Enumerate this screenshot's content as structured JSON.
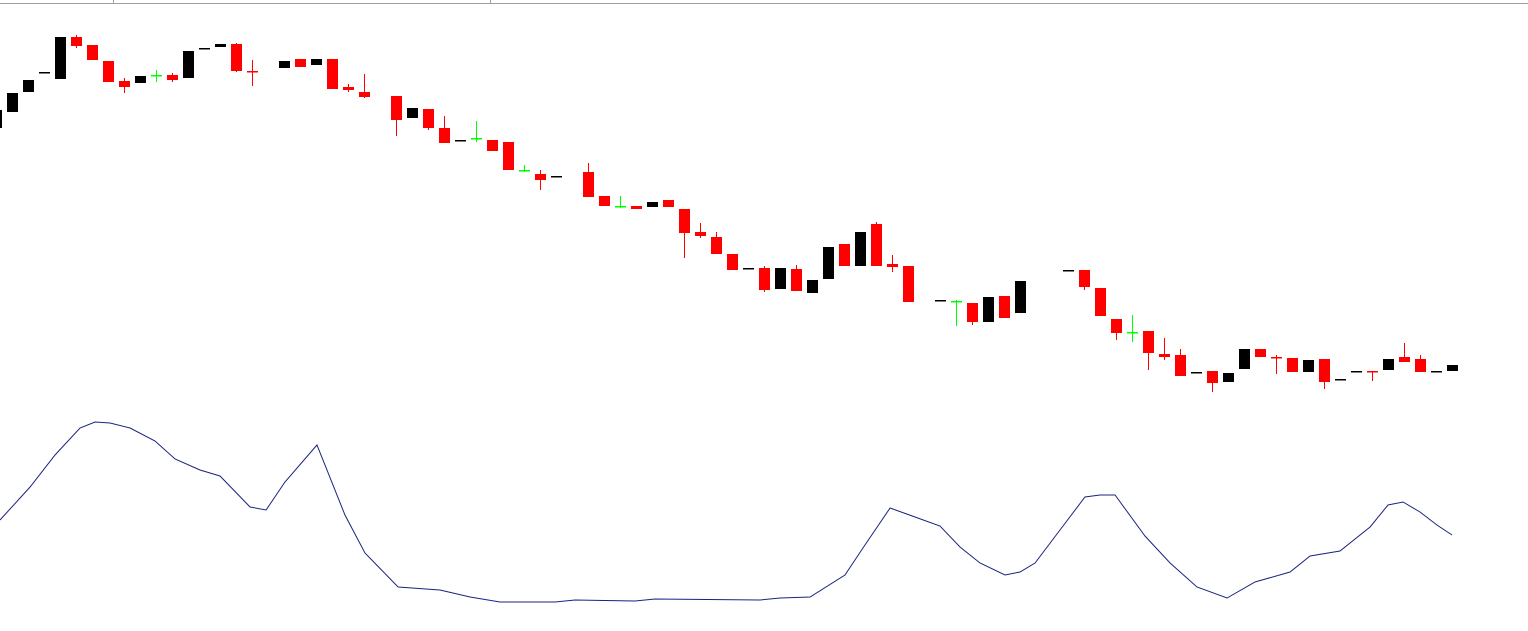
{
  "chart_data": [
    {
      "type": "candlestick",
      "x": [
        0,
        1,
        2,
        3,
        4,
        5,
        6,
        7,
        8,
        9,
        10,
        11,
        12,
        13,
        14,
        15,
        16,
        18,
        19,
        20,
        21,
        22,
        23,
        25,
        26,
        27,
        28,
        29,
        30,
        31,
        32,
        33,
        34,
        35,
        37,
        38,
        39,
        40,
        41,
        42,
        43,
        44,
        45,
        46,
        47,
        48,
        49,
        50,
        51,
        52,
        53,
        54,
        55,
        56,
        57,
        59,
        60,
        61,
        62,
        63,
        64,
        67,
        68,
        69,
        70,
        71,
        72,
        73,
        74,
        75,
        76,
        77,
        78,
        79,
        80,
        81,
        82,
        83,
        84,
        85,
        86,
        87,
        88,
        89,
        90,
        91
      ],
      "open": [
        282,
        298,
        318,
        337,
        331,
        373,
        365,
        349,
        329,
        327,
        335,
        335,
        332,
        361,
        363,
        366,
        339,
        342,
        351,
        345,
        351,
        323,
        318,
        314,
        292,
        301,
        282,
        269,
        272,
        270,
        268,
        240,
        236,
        233,
        238,
        214,
        204,
        204,
        203,
        210,
        201,
        178,
        173,
        156,
        141,
        142,
        121,
        141,
        117,
        131,
        166,
        144,
        186,
        146,
        144,
        109,
        109,
        107,
        88,
        114,
        97,
        139,
        140,
        122,
        91,
        78,
        79,
        56,
        55,
        37,
        39,
        28,
        41,
        61,
        53,
        52,
        38,
        51,
        30,
        38,
        39,
        40,
        53,
        51,
        38,
        39
      ],
      "high": [
        300,
        317,
        330,
        338,
        373,
        375,
        365,
        349,
        332,
        334,
        340,
        337,
        359,
        362,
        366,
        367,
        350,
        349,
        351,
        351,
        351,
        326,
        336,
        314,
        302,
        301,
        294,
        270,
        289,
        270,
        268,
        245,
        240,
        234,
        247,
        214,
        214,
        204,
        208,
        210,
        201,
        187,
        178,
        156,
        142,
        144,
        142,
        145,
        130,
        163,
        166,
        178,
        188,
        155,
        144,
        110,
        110,
        107,
        113,
        114,
        129,
        140,
        140,
        122,
        91,
        95,
        79,
        72,
        61,
        38,
        39,
        37,
        61,
        61,
        55,
        52,
        50,
        51,
        31,
        39,
        39,
        51,
        67,
        55,
        39,
        45
      ],
      "low": [
        282,
        298,
        318,
        337,
        331,
        362,
        350,
        328,
        317,
        327,
        328,
        328,
        332,
        361,
        363,
        338,
        324,
        342,
        343,
        345,
        321,
        318,
        312,
        274,
        292,
        280,
        267,
        269,
        268,
        259,
        240,
        238,
        220,
        233,
        213,
        204,
        202,
        201,
        203,
        203,
        152,
        172,
        156,
        140,
        141,
        118,
        121,
        119,
        117,
        131,
        144,
        144,
        144,
        138,
        108,
        109,
        84,
        85,
        88,
        92,
        97,
        139,
        120,
        94,
        70,
        68,
        40,
        50,
        34,
        37,
        18,
        28,
        41,
        53,
        36,
        38,
        38,
        21,
        30,
        38,
        29,
        40,
        48,
        38,
        38,
        39
      ],
      "close": [
        300,
        317,
        330,
        338,
        373,
        364,
        350,
        328,
        323,
        334,
        335,
        330,
        359,
        362,
        366,
        339,
        338,
        349,
        343,
        351,
        321,
        320,
        313,
        290,
        302,
        282,
        267,
        270,
        272,
        259,
        240,
        240,
        230,
        234,
        213,
        204,
        204,
        201,
        208,
        203,
        177,
        174,
        156,
        140,
        142,
        120,
        142,
        119,
        130,
        163,
        144,
        178,
        144,
        143,
        108,
        110,
        109,
        88,
        113,
        92,
        129,
        140,
        123,
        94,
        77,
        78,
        57,
        53,
        34,
        38,
        27,
        37,
        61,
        53,
        52,
        38,
        50,
        28,
        31,
        39,
        38,
        51,
        48,
        38,
        39,
        45
      ],
      "up_color": "#000000",
      "down_color": "#ff0000",
      "doji_color": "#00ff00",
      "xlim": [
        0.25,
        95.75
      ],
      "ylim": [
        0,
        410
      ]
    },
    {
      "type": "line",
      "x": [
        0.25,
        2.13,
        3.69,
        5.25,
        6.19,
        7.13,
        8.38,
        9.94,
        11.19,
        12.75,
        14,
        15.88,
        16.88,
        18.06,
        20.06,
        21.81,
        23.06,
        25.13,
        27.75,
        29.63,
        31.5,
        34.94,
        36.19,
        39.94,
        41.19,
        47.75,
        49,
        50.88,
        53.06,
        54.31,
        55.88,
        57.44,
        59,
        60.25,
        61.5,
        63.06,
        64,
        64.94,
        66.5,
        68.06,
        69,
        69.94,
        71.81,
        73.38,
        75.06,
        76.94,
        78.69,
        80.88,
        82.13,
        84,
        85.88,
        87,
        87.94,
        89,
        90.06,
        91
      ],
      "values": [
        100,
        133,
        165,
        192,
        198,
        197,
        192,
        179,
        161,
        150,
        144,
        113,
        110,
        138,
        175,
        105,
        67,
        33,
        30,
        23,
        18,
        18,
        20,
        19,
        21,
        20,
        22,
        23,
        45,
        75,
        112,
        103,
        94,
        73,
        57,
        45,
        48,
        57,
        90,
        123,
        125,
        125,
        84,
        57,
        33,
        22,
        38,
        48,
        64,
        69,
        93,
        115,
        118,
        108,
        95,
        85
      ],
      "color": "#1a237e",
      "xlim": [
        0.25,
        95.75
      ],
      "ylim": [
        0,
        210
      ]
    }
  ]
}
